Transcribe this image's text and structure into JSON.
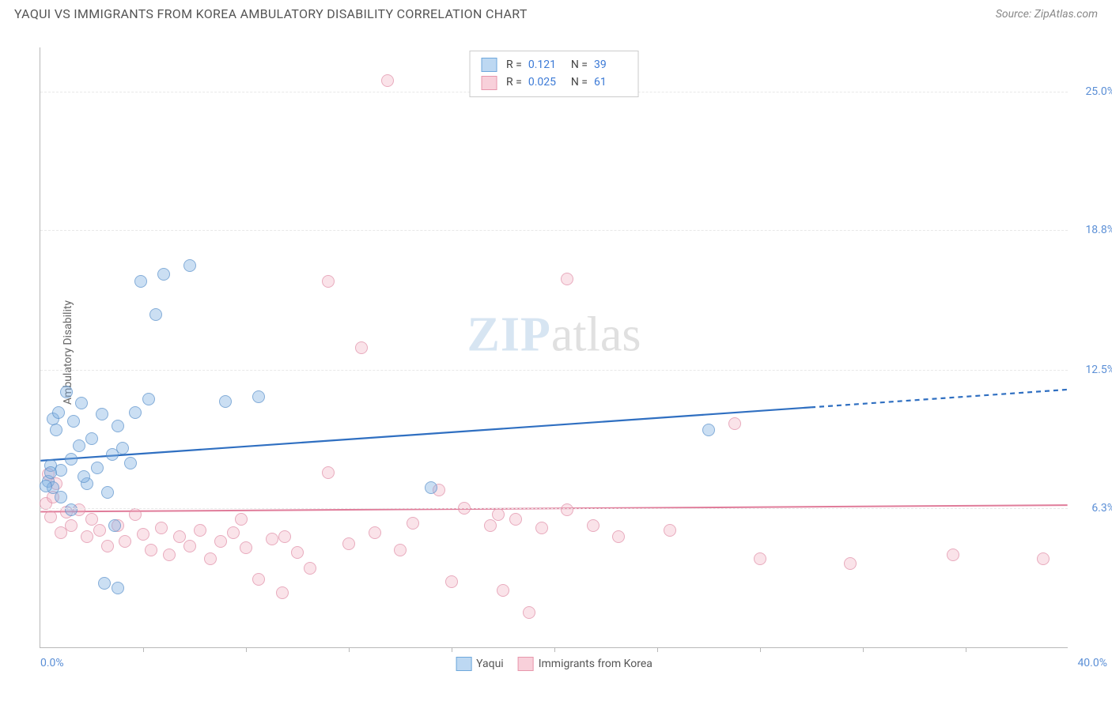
{
  "header": {
    "title": "YAQUI VS IMMIGRANTS FROM KOREA AMBULATORY DISABILITY CORRELATION CHART",
    "source": "Source: ZipAtlas.com"
  },
  "watermark": {
    "zip": "ZIP",
    "rest": "atlas"
  },
  "axes": {
    "y_title": "Ambulatory Disability",
    "x_min_label": "0.0%",
    "x_max_label": "40.0%",
    "x_min": 0,
    "x_max": 40,
    "y_min": 0,
    "y_max": 27,
    "y_ticks": [
      {
        "v": 6.3,
        "label": "6.3%"
      },
      {
        "v": 12.5,
        "label": "12.5%"
      },
      {
        "v": 18.8,
        "label": "18.8%"
      },
      {
        "v": 25.0,
        "label": "25.0%"
      }
    ],
    "x_tick_positions": [
      4,
      8,
      12,
      16,
      20,
      24,
      28,
      32,
      36
    ]
  },
  "legend_top": {
    "rows": [
      {
        "swatch": "blue",
        "r_label": "R =",
        "r": "0.121",
        "n_label": "N =",
        "n": "39"
      },
      {
        "swatch": "pink",
        "r_label": "R =",
        "r": "0.025",
        "n_label": "N =",
        "n": "61"
      }
    ]
  },
  "legend_bottom": {
    "items": [
      {
        "swatch": "blue",
        "label": "Yaqui"
      },
      {
        "swatch": "pink",
        "label": "Immigrants from Korea"
      }
    ]
  },
  "trend_lines": {
    "blue": {
      "color": "#2f6fc1",
      "width": 2.2,
      "x1": 0,
      "y1": 8.4,
      "x2": 40,
      "y2": 11.6,
      "solid_until_x": 30
    },
    "pink": {
      "color": "#e07c9a",
      "width": 2,
      "x1": 0,
      "y1": 6.1,
      "x2": 40,
      "y2": 6.4,
      "solid_until_x": 40
    }
  },
  "series": {
    "blue": [
      {
        "x": 0.3,
        "y": 7.5
      },
      {
        "x": 0.4,
        "y": 8.2
      },
      {
        "x": 0.5,
        "y": 10.3
      },
      {
        "x": 0.5,
        "y": 7.2
      },
      {
        "x": 0.6,
        "y": 9.8
      },
      {
        "x": 0.7,
        "y": 10.6
      },
      {
        "x": 0.8,
        "y": 6.8
      },
      {
        "x": 0.8,
        "y": 8.0
      },
      {
        "x": 1.0,
        "y": 11.5
      },
      {
        "x": 1.2,
        "y": 8.5
      },
      {
        "x": 1.3,
        "y": 10.2
      },
      {
        "x": 1.5,
        "y": 9.1
      },
      {
        "x": 1.6,
        "y": 11.0
      },
      {
        "x": 1.8,
        "y": 7.4
      },
      {
        "x": 2.0,
        "y": 9.4
      },
      {
        "x": 2.2,
        "y": 8.1
      },
      {
        "x": 2.4,
        "y": 10.5
      },
      {
        "x": 2.6,
        "y": 7.0
      },
      {
        "x": 2.8,
        "y": 8.7
      },
      {
        "x": 2.9,
        "y": 5.5
      },
      {
        "x": 3.0,
        "y": 10.0
      },
      {
        "x": 3.2,
        "y": 9.0
      },
      {
        "x": 3.5,
        "y": 8.3
      },
      {
        "x": 3.7,
        "y": 10.6
      },
      {
        "x": 3.9,
        "y": 16.5
      },
      {
        "x": 4.2,
        "y": 11.2
      },
      {
        "x": 4.5,
        "y": 15.0
      },
      {
        "x": 4.8,
        "y": 16.8
      },
      {
        "x": 5.8,
        "y": 17.2
      },
      {
        "x": 2.5,
        "y": 2.9
      },
      {
        "x": 3.0,
        "y": 2.7
      },
      {
        "x": 1.2,
        "y": 6.2
      },
      {
        "x": 1.7,
        "y": 7.7
      },
      {
        "x": 0.4,
        "y": 7.9
      },
      {
        "x": 7.2,
        "y": 11.1
      },
      {
        "x": 8.5,
        "y": 11.3
      },
      {
        "x": 15.2,
        "y": 7.2
      },
      {
        "x": 26.0,
        "y": 9.8
      },
      {
        "x": 0.2,
        "y": 7.3
      }
    ],
    "pink": [
      {
        "x": 0.2,
        "y": 6.5
      },
      {
        "x": 0.3,
        "y": 7.8
      },
      {
        "x": 0.4,
        "y": 5.9
      },
      {
        "x": 0.5,
        "y": 6.8
      },
      {
        "x": 0.6,
        "y": 7.4
      },
      {
        "x": 0.8,
        "y": 5.2
      },
      {
        "x": 1.0,
        "y": 6.1
      },
      {
        "x": 1.2,
        "y": 5.5
      },
      {
        "x": 1.5,
        "y": 6.2
      },
      {
        "x": 1.8,
        "y": 5.0
      },
      {
        "x": 2.0,
        "y": 5.8
      },
      {
        "x": 2.3,
        "y": 5.3
      },
      {
        "x": 2.6,
        "y": 4.6
      },
      {
        "x": 3.0,
        "y": 5.5
      },
      {
        "x": 3.3,
        "y": 4.8
      },
      {
        "x": 3.7,
        "y": 6.0
      },
      {
        "x": 4.0,
        "y": 5.1
      },
      {
        "x": 4.3,
        "y": 4.4
      },
      {
        "x": 4.7,
        "y": 5.4
      },
      {
        "x": 5.0,
        "y": 4.2
      },
      {
        "x": 5.4,
        "y": 5.0
      },
      {
        "x": 5.8,
        "y": 4.6
      },
      {
        "x": 6.2,
        "y": 5.3
      },
      {
        "x": 6.6,
        "y": 4.0
      },
      {
        "x": 7.0,
        "y": 4.8
      },
      {
        "x": 7.5,
        "y": 5.2
      },
      {
        "x": 8.0,
        "y": 4.5
      },
      {
        "x": 8.5,
        "y": 3.1
      },
      {
        "x": 9.0,
        "y": 4.9
      },
      {
        "x": 9.4,
        "y": 2.5
      },
      {
        "x": 9.5,
        "y": 5.0
      },
      {
        "x": 10.0,
        "y": 4.3
      },
      {
        "x": 10.5,
        "y": 3.6
      },
      {
        "x": 11.2,
        "y": 16.5
      },
      {
        "x": 11.2,
        "y": 7.9
      },
      {
        "x": 12.0,
        "y": 4.7
      },
      {
        "x": 12.5,
        "y": 13.5
      },
      {
        "x": 13.5,
        "y": 25.5
      },
      {
        "x": 13.0,
        "y": 5.2
      },
      {
        "x": 14.0,
        "y": 4.4
      },
      {
        "x": 14.5,
        "y": 5.6
      },
      {
        "x": 15.5,
        "y": 7.1
      },
      {
        "x": 16.0,
        "y": 3.0
      },
      {
        "x": 16.5,
        "y": 6.3
      },
      {
        "x": 17.5,
        "y": 5.5
      },
      {
        "x": 17.8,
        "y": 6.0
      },
      {
        "x": 18.0,
        "y": 2.6
      },
      {
        "x": 18.5,
        "y": 5.8
      },
      {
        "x": 19.0,
        "y": 1.6
      },
      {
        "x": 19.5,
        "y": 5.4
      },
      {
        "x": 20.5,
        "y": 6.2
      },
      {
        "x": 20.5,
        "y": 16.6
      },
      {
        "x": 21.5,
        "y": 5.5
      },
      {
        "x": 22.5,
        "y": 5.0
      },
      {
        "x": 24.5,
        "y": 5.3
      },
      {
        "x": 27.0,
        "y": 10.1
      },
      {
        "x": 28.0,
        "y": 4.0
      },
      {
        "x": 31.5,
        "y": 3.8
      },
      {
        "x": 35.5,
        "y": 4.2
      },
      {
        "x": 39.0,
        "y": 4.0
      },
      {
        "x": 7.8,
        "y": 5.8
      }
    ]
  },
  "colors": {
    "blue_fill": "#bdd8f2",
    "blue_stroke": "#6ea8dc",
    "pink_fill": "#f8d0da",
    "pink_stroke": "#e797ac",
    "axis": "#b8b8b8",
    "grid": "#e8e8e8",
    "tick_text": "#5b8fd6",
    "title_text": "#555555"
  }
}
